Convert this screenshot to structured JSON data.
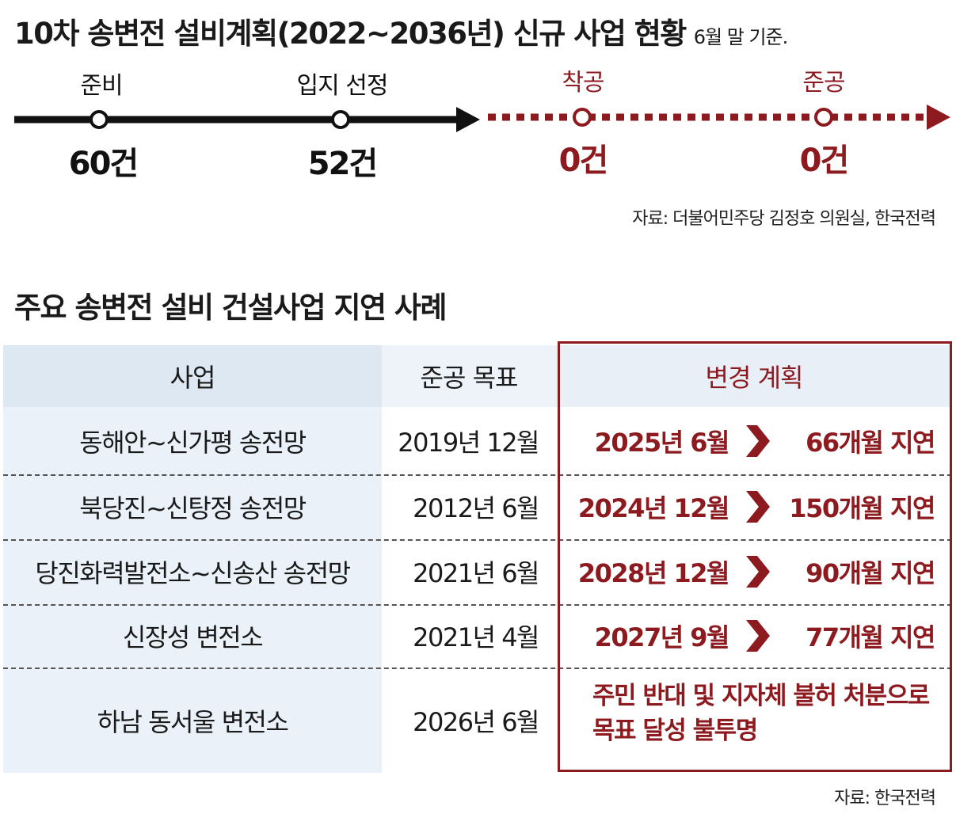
{
  "header": {
    "title": "10차 송변전 설비계획(2022~2036년) 신규 사업 현황",
    "subtitle": "6월 말 기준."
  },
  "timeline": {
    "stages": [
      {
        "label": "준비",
        "count": "60건",
        "status": "done"
      },
      {
        "label": "입지 선정",
        "count": "52건",
        "status": "done"
      },
      {
        "label": "착공",
        "count": "0건",
        "status": "pending"
      },
      {
        "label": "준공",
        "count": "0건",
        "status": "pending"
      }
    ],
    "source": "자료: 더불어민주당 김정호 의원실, 한국전력",
    "colors": {
      "done": "#111111",
      "pending": "#8c1a1f"
    }
  },
  "section2": {
    "title": "주요 송변전 설비 건설사업 지연 사례"
  },
  "table": {
    "headers": {
      "project": "사업",
      "goal": "준공 목표",
      "plan": "변경 계획"
    },
    "rows": [
      {
        "project": "동해안~신가평 송전망",
        "goal": "2019년 12월",
        "plan_date": "2025년 6월",
        "delay": "66개월 지연"
      },
      {
        "project": "북당진~신탕정 송전망",
        "goal": "2012년 6월",
        "plan_date": "2024년 12월",
        "delay": "150개월 지연"
      },
      {
        "project": "당진화력발전소~신송산 송전망",
        "goal": "2021년 6월",
        "plan_date": "2028년 12월",
        "delay": "90개월 지연"
      },
      {
        "project": "신장성 변전소",
        "goal": "2021년 4월",
        "plan_date": "2027년 9월",
        "delay": "77개월 지연"
      },
      {
        "project": "하남 동서울 변전소",
        "goal": "2026년 6월",
        "note_line1": "주민 반대 및 지자체 불허 처분으로",
        "note_line2": "목표 달성 불투명"
      }
    ],
    "source": "자료: 한국전력",
    "accent": "#8c1a1f"
  }
}
